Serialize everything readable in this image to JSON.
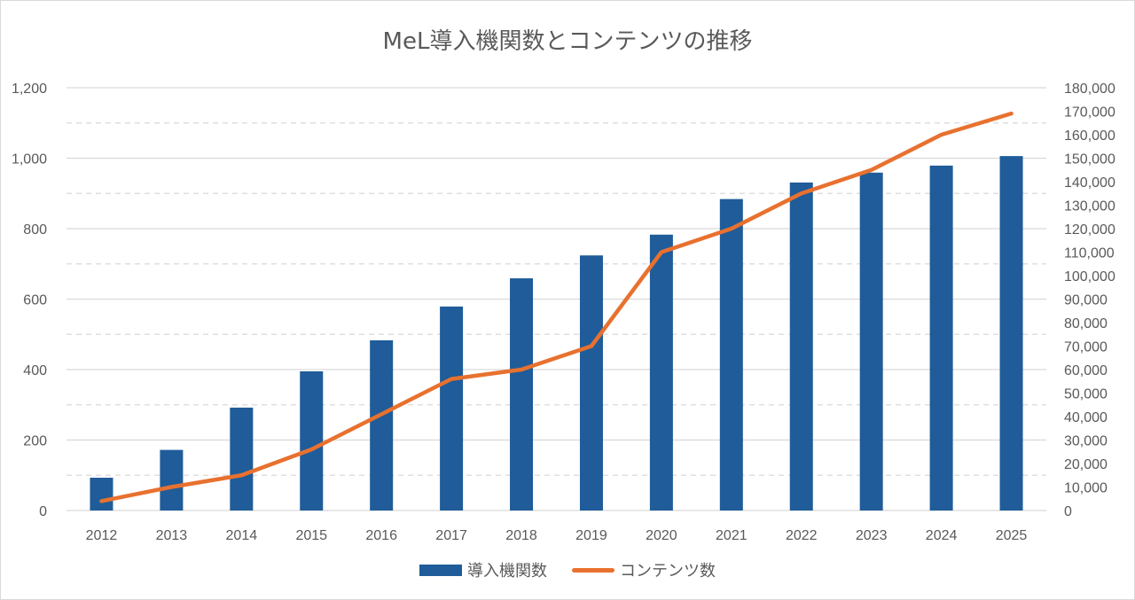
{
  "chart_data": {
    "type": "bar+line",
    "title": "MeL導入機関数とコンテンツの推移",
    "categories": [
      "2012",
      "2013",
      "2014",
      "2015",
      "2016",
      "2017",
      "2018",
      "2019",
      "2020",
      "2021",
      "2022",
      "2023",
      "2024",
      "2025"
    ],
    "series": [
      {
        "name": "導入機関数",
        "type": "bar",
        "axis": "left",
        "color": "#1f5c99",
        "values": [
          93,
          172,
          292,
          395,
          483,
          579,
          659,
          724,
          783,
          884,
          931,
          959,
          979,
          1006
        ]
      },
      {
        "name": "コンテンツ数",
        "type": "line",
        "axis": "right",
        "color": "#e8712f",
        "values": [
          4000,
          10000,
          15000,
          26000,
          41000,
          56000,
          60000,
          70000,
          110000,
          120000,
          135000,
          145000,
          160000,
          169000
        ]
      }
    ],
    "left_axis": {
      "min": 0,
      "max": 1200,
      "ticks": [
        0,
        200,
        400,
        600,
        800,
        1000,
        1200
      ],
      "tick_labels": [
        "0",
        "200",
        "400",
        "600",
        "800",
        "1,000",
        "1,200"
      ]
    },
    "right_axis": {
      "min": 0,
      "max": 180000,
      "ticks": [
        0,
        10000,
        20000,
        30000,
        40000,
        50000,
        60000,
        70000,
        80000,
        90000,
        100000,
        110000,
        120000,
        130000,
        140000,
        150000,
        160000,
        170000,
        180000
      ],
      "tick_labels": [
        "0",
        "10,000",
        "20,000",
        "30,000",
        "40,000",
        "50,000",
        "60,000",
        "70,000",
        "80,000",
        "90,000",
        "100,000",
        "110,000",
        "120,000",
        "130,000",
        "140,000",
        "150,000",
        "160,000",
        "170,000",
        "180,000"
      ]
    },
    "grid": true,
    "legend_position": "bottom"
  }
}
